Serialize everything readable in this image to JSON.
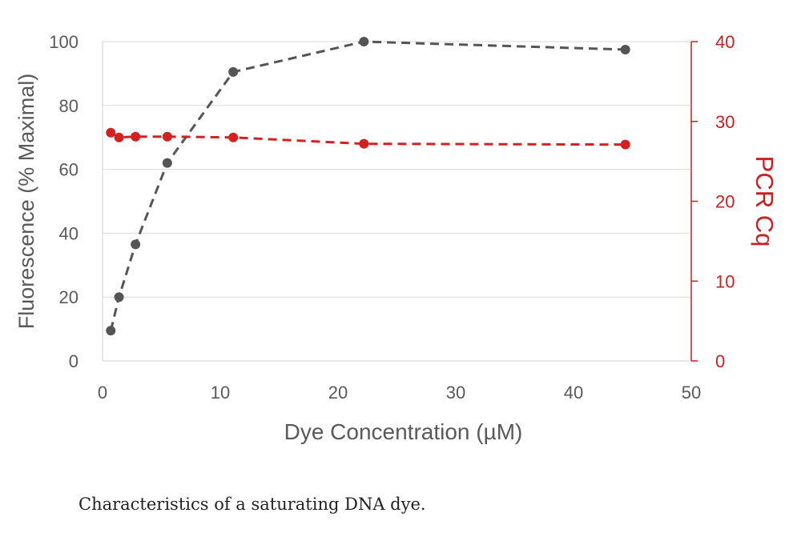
{
  "chart_data": {
    "type": "line",
    "title": "",
    "xlabel": "Dye Concentration (µM)",
    "ylabel": "Fluorescence (% Maximal)",
    "y2label": "PCR Cq",
    "xlim": [
      0,
      50
    ],
    "ylim": [
      0,
      100
    ],
    "y2lim": [
      0,
      40
    ],
    "xticks": [
      0,
      10,
      20,
      30,
      40,
      50
    ],
    "yticks": [
      0,
      20,
      40,
      60,
      80,
      100
    ],
    "y2ticks": [
      0,
      10,
      20,
      30,
      40
    ],
    "grid": true,
    "x": [
      0.7,
      1.4,
      2.8,
      5.5,
      11.1,
      22.2,
      44.4
    ],
    "series": [
      {
        "axis": "left",
        "color": "#555555",
        "style": "dashed",
        "values": [
          9.5,
          20,
          36.5,
          62,
          90.5,
          100,
          97.5
        ]
      },
      {
        "axis": "right",
        "color": "#d42020",
        "style": "dashed",
        "values": [
          28.6,
          28.0,
          28.1,
          28.1,
          28.0,
          27.2,
          27.1
        ]
      }
    ]
  },
  "caption": "Characteristics of a saturating DNA dye."
}
